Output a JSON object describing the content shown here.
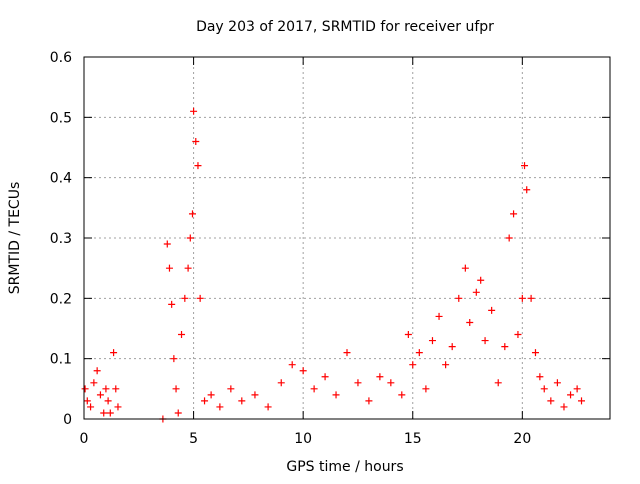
{
  "chart_data": {
    "type": "scatter",
    "title": "Day 203 of 2017, SRMTID for receiver ufpr",
    "xlabel": "GPS time / hours",
    "ylabel": "SRMTID / TECUs",
    "xlim": [
      0,
      24
    ],
    "ylim": [
      0,
      0.6
    ],
    "x_ticks": [
      0,
      5,
      10,
      15,
      20
    ],
    "x_tick_labels": [
      "0",
      "5",
      "10",
      "15",
      "20"
    ],
    "y_ticks": [
      0,
      0.1,
      0.2,
      0.3,
      0.4,
      0.5,
      0.6
    ],
    "y_tick_labels": [
      "0",
      "0.1",
      "0.2",
      "0.3",
      "0.4",
      "0.5",
      "0.6"
    ],
    "grid": true,
    "marker": "+",
    "colors": {
      "marker": "#ff0000",
      "grid": "#a0a0a0",
      "axis": "#000000"
    },
    "series": [
      {
        "name": "SRMTID",
        "x": [
          0.05,
          0.15,
          0.3,
          0.45,
          0.6,
          0.75,
          0.9,
          1.0,
          1.1,
          1.2,
          1.35,
          1.45,
          1.55,
          3.6,
          3.8,
          3.9,
          4.0,
          4.1,
          4.2,
          4.3,
          4.45,
          4.6,
          4.75,
          4.85,
          4.95,
          5.0,
          5.1,
          5.2,
          5.3,
          5.5,
          5.8,
          6.2,
          6.7,
          7.2,
          7.8,
          8.4,
          9.0,
          9.5,
          10.0,
          10.5,
          11.0,
          11.5,
          12.0,
          12.5,
          13.0,
          13.5,
          14.0,
          14.5,
          14.8,
          15.0,
          15.3,
          15.6,
          15.9,
          16.2,
          16.5,
          16.8,
          17.1,
          17.4,
          17.6,
          17.9,
          18.1,
          18.3,
          18.6,
          18.9,
          19.2,
          19.4,
          19.6,
          19.8,
          20.0,
          20.1,
          20.2,
          20.4,
          20.6,
          20.8,
          21.0,
          21.3,
          21.6,
          21.9,
          22.2,
          22.5,
          22.7
        ],
        "y": [
          0.05,
          0.03,
          0.02,
          0.06,
          0.08,
          0.04,
          0.01,
          0.05,
          0.03,
          0.01,
          0.11,
          0.05,
          0.02,
          0.0,
          0.29,
          0.25,
          0.19,
          0.1,
          0.05,
          0.01,
          0.14,
          0.2,
          0.25,
          0.3,
          0.34,
          0.51,
          0.46,
          0.42,
          0.2,
          0.03,
          0.04,
          0.02,
          0.05,
          0.03,
          0.04,
          0.02,
          0.06,
          0.09,
          0.08,
          0.05,
          0.07,
          0.04,
          0.11,
          0.06,
          0.03,
          0.07,
          0.06,
          0.04,
          0.14,
          0.09,
          0.11,
          0.05,
          0.13,
          0.17,
          0.09,
          0.12,
          0.2,
          0.25,
          0.16,
          0.21,
          0.23,
          0.13,
          0.18,
          0.06,
          0.12,
          0.3,
          0.34,
          0.14,
          0.2,
          0.42,
          0.38,
          0.2,
          0.11,
          0.07,
          0.05,
          0.03,
          0.06,
          0.02,
          0.04,
          0.05,
          0.03
        ]
      }
    ]
  }
}
